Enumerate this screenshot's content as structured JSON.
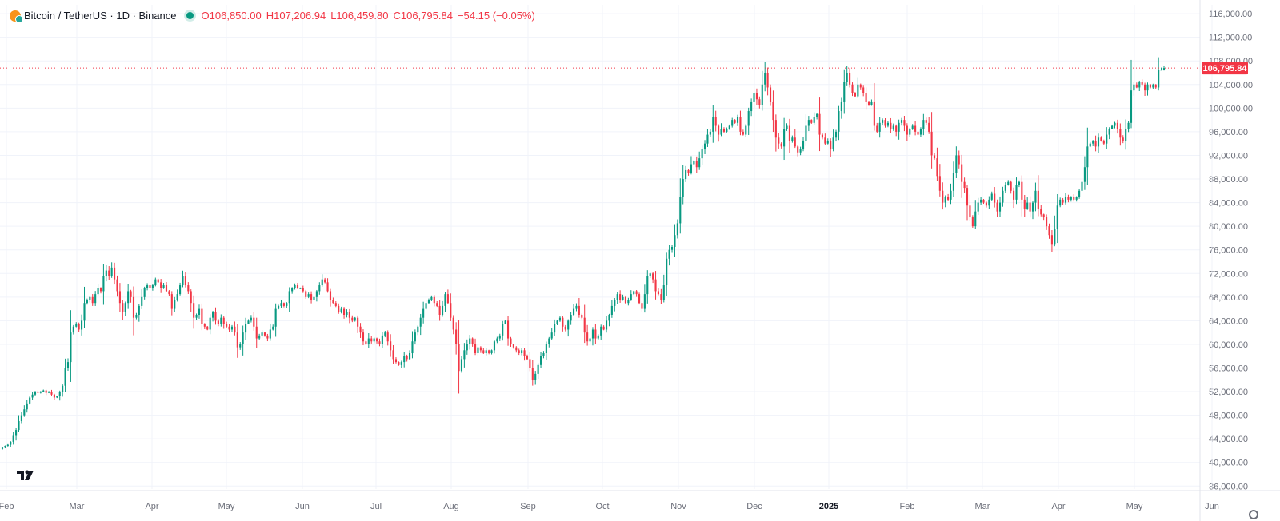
{
  "header": {
    "symbol": "Bitcoin / TetherUS · 1D · Binance",
    "open_label": "O",
    "open": "106,850.00",
    "high_label": "H",
    "high": "107,206.94",
    "low_label": "L",
    "low": "106,459.80",
    "close_label": "C",
    "close": "106,795.84",
    "change": "−54.15 (−0.05%)"
  },
  "price_tag": "106,795.84",
  "colors": {
    "up": "#089981",
    "down": "#f23645",
    "grid": "#f0f3fa",
    "text": "#131722",
    "axis_text": "#6a6d78"
  },
  "icons": {
    "symbol": "bitcoin-icon",
    "logo": "tradingview-logo-icon",
    "settings": "gear-icon"
  },
  "chart_data": {
    "type": "candlestick",
    "title": "Bitcoin / TetherUS · 1D · Binance",
    "ylim": [
      35500,
      117500
    ],
    "y_ticks": [
      "116,000.00",
      "112,000.00",
      "108,000.00",
      "104,000.00",
      "100,000.00",
      "96,000.00",
      "92,000.00",
      "88,000.00",
      "84,000.00",
      "80,000.00",
      "76,000.00",
      "72,000.00",
      "68,000.00",
      "64,000.00",
      "60,000.00",
      "56,000.00",
      "52,000.00",
      "48,000.00",
      "44,000.00",
      "40,000.00",
      "36,000.00"
    ],
    "x_labels": [
      "Feb",
      "Mar",
      "Apr",
      "May",
      "Jun",
      "Jul",
      "Aug",
      "Sep",
      "Oct",
      "Nov",
      "Dec",
      "2025",
      "Feb",
      "Mar",
      "Apr",
      "May",
      "Jun"
    ],
    "last_price": 106795.84,
    "series_closes": [
      42500,
      42800,
      43000,
      43500,
      44500,
      45500,
      47000,
      48000,
      49000,
      50000,
      51000,
      51500,
      52000,
      51800,
      52000,
      52200,
      51800,
      52000,
      51500,
      51000,
      51200,
      52000,
      53000,
      56000,
      57000,
      62000,
      63000,
      63500,
      62500,
      64000,
      67000,
      67500,
      68000,
      67000,
      68500,
      69500,
      69000,
      71500,
      72500,
      71500,
      73000,
      71000,
      69000,
      67000,
      65500,
      67000,
      69000,
      68000,
      64500,
      65000,
      66500,
      68000,
      69500,
      70000,
      69500,
      70000,
      71000,
      70500,
      69500,
      70000,
      69000,
      68500,
      66000,
      67500,
      68500,
      70000,
      71500,
      70000,
      69000,
      67000,
      64500,
      65000,
      66000,
      63500,
      63000,
      62500,
      64500,
      65500,
      64000,
      63500,
      64500,
      63500,
      63000,
      62500,
      63000,
      62000,
      59500,
      60000,
      62000,
      63500,
      64000,
      64500,
      63000,
      61000,
      61500,
      62000,
      61500,
      61000,
      62500,
      63000,
      66000,
      66500,
      67000,
      66500,
      67000,
      69000,
      69500,
      70000,
      69500,
      69500,
      69000,
      68000,
      68500,
      67500,
      68000,
      69000,
      70000,
      71000,
      70500,
      69000,
      67500,
      67000,
      66500,
      65500,
      66000,
      65000,
      65500,
      64500,
      64000,
      64500,
      63000,
      62000,
      60500,
      60000,
      61000,
      60500,
      61000,
      60500,
      60000,
      61500,
      62000,
      60500,
      59000,
      57500,
      57000,
      56500,
      57000,
      58000,
      57500,
      58500,
      60500,
      62000,
      63000,
      64500,
      66000,
      67000,
      67500,
      68000,
      67000,
      66500,
      65000,
      66500,
      68500,
      67000,
      64500,
      62500,
      60000,
      55500,
      57500,
      59000,
      60000,
      61000,
      60000,
      58500,
      59500,
      59000,
      58500,
      59000,
      58500,
      59000,
      60500,
      61000,
      61500,
      63500,
      64000,
      61000,
      60000,
      59500,
      59000,
      58500,
      59000,
      58000,
      57500,
      56000,
      54000,
      55000,
      56500,
      58000,
      58500,
      60000,
      61000,
      62000,
      63500,
      64000,
      64500,
      63000,
      62500,
      64000,
      65000,
      66000,
      66500,
      65000,
      64500,
      62000,
      60500,
      61000,
      62500,
      61000,
      61500,
      63000,
      62500,
      64000,
      65000,
      66500,
      67500,
      68500,
      67500,
      68000,
      67000,
      67500,
      68500,
      69000,
      68500,
      67000,
      66000,
      68500,
      71500,
      72000,
      71000,
      69000,
      68500,
      67500,
      70000,
      74500,
      76000,
      76500,
      78500,
      80500,
      85000,
      88000,
      89500,
      89000,
      90500,
      91000,
      90000,
      91500,
      93000,
      94000,
      95500,
      96000,
      98500,
      97000,
      95500,
      96500,
      96000,
      96500,
      97000,
      98000,
      97500,
      98500,
      96000,
      95500,
      97000,
      99500,
      101000,
      102500,
      101500,
      100500,
      104000,
      106000,
      103500,
      101000,
      98000,
      95000,
      94000,
      93500,
      96500,
      97000,
      94500,
      95000,
      93500,
      92500,
      93000,
      94500,
      97000,
      98000,
      97500,
      98500,
      99000,
      95500,
      95000,
      94000,
      94500,
      93000,
      95000,
      96000,
      99500,
      101000,
      104500,
      106000,
      104000,
      102500,
      102000,
      104000,
      103500,
      102500,
      101000,
      100500,
      101000,
      97000,
      96000,
      97500,
      98000,
      97000,
      97500,
      96500,
      97000,
      96000,
      97500,
      98000,
      97000,
      95500,
      96500,
      97000,
      96000,
      95500,
      96500,
      98000,
      97500,
      96000,
      92000,
      91500,
      88500,
      86000,
      84000,
      85000,
      84500,
      86000,
      89000,
      92000,
      90500,
      87500,
      86500,
      83500,
      81500,
      80000,
      82500,
      84000,
      84500,
      84000,
      83500,
      84500,
      85500,
      84000,
      82500,
      84000,
      86000,
      87000,
      87500,
      86000,
      84500,
      87000,
      87500,
      84500,
      83000,
      84000,
      82500,
      84000,
      86000,
      83000,
      82000,
      81500,
      80000,
      78500,
      77000,
      79500,
      83500,
      84500,
      84000,
      85000,
      84500,
      85000,
      84500,
      85000,
      86000,
      87500,
      90000,
      93500,
      94000,
      94500,
      93500,
      95000,
      94500,
      94000,
      95500,
      96500,
      97000,
      97500,
      96500,
      95000,
      94500,
      96500,
      97500,
      103000,
      104000,
      103500,
      104500,
      104000,
      103000,
      104000,
      103500,
      104000,
      103500,
      106500,
      106500,
      106795.84
    ]
  }
}
